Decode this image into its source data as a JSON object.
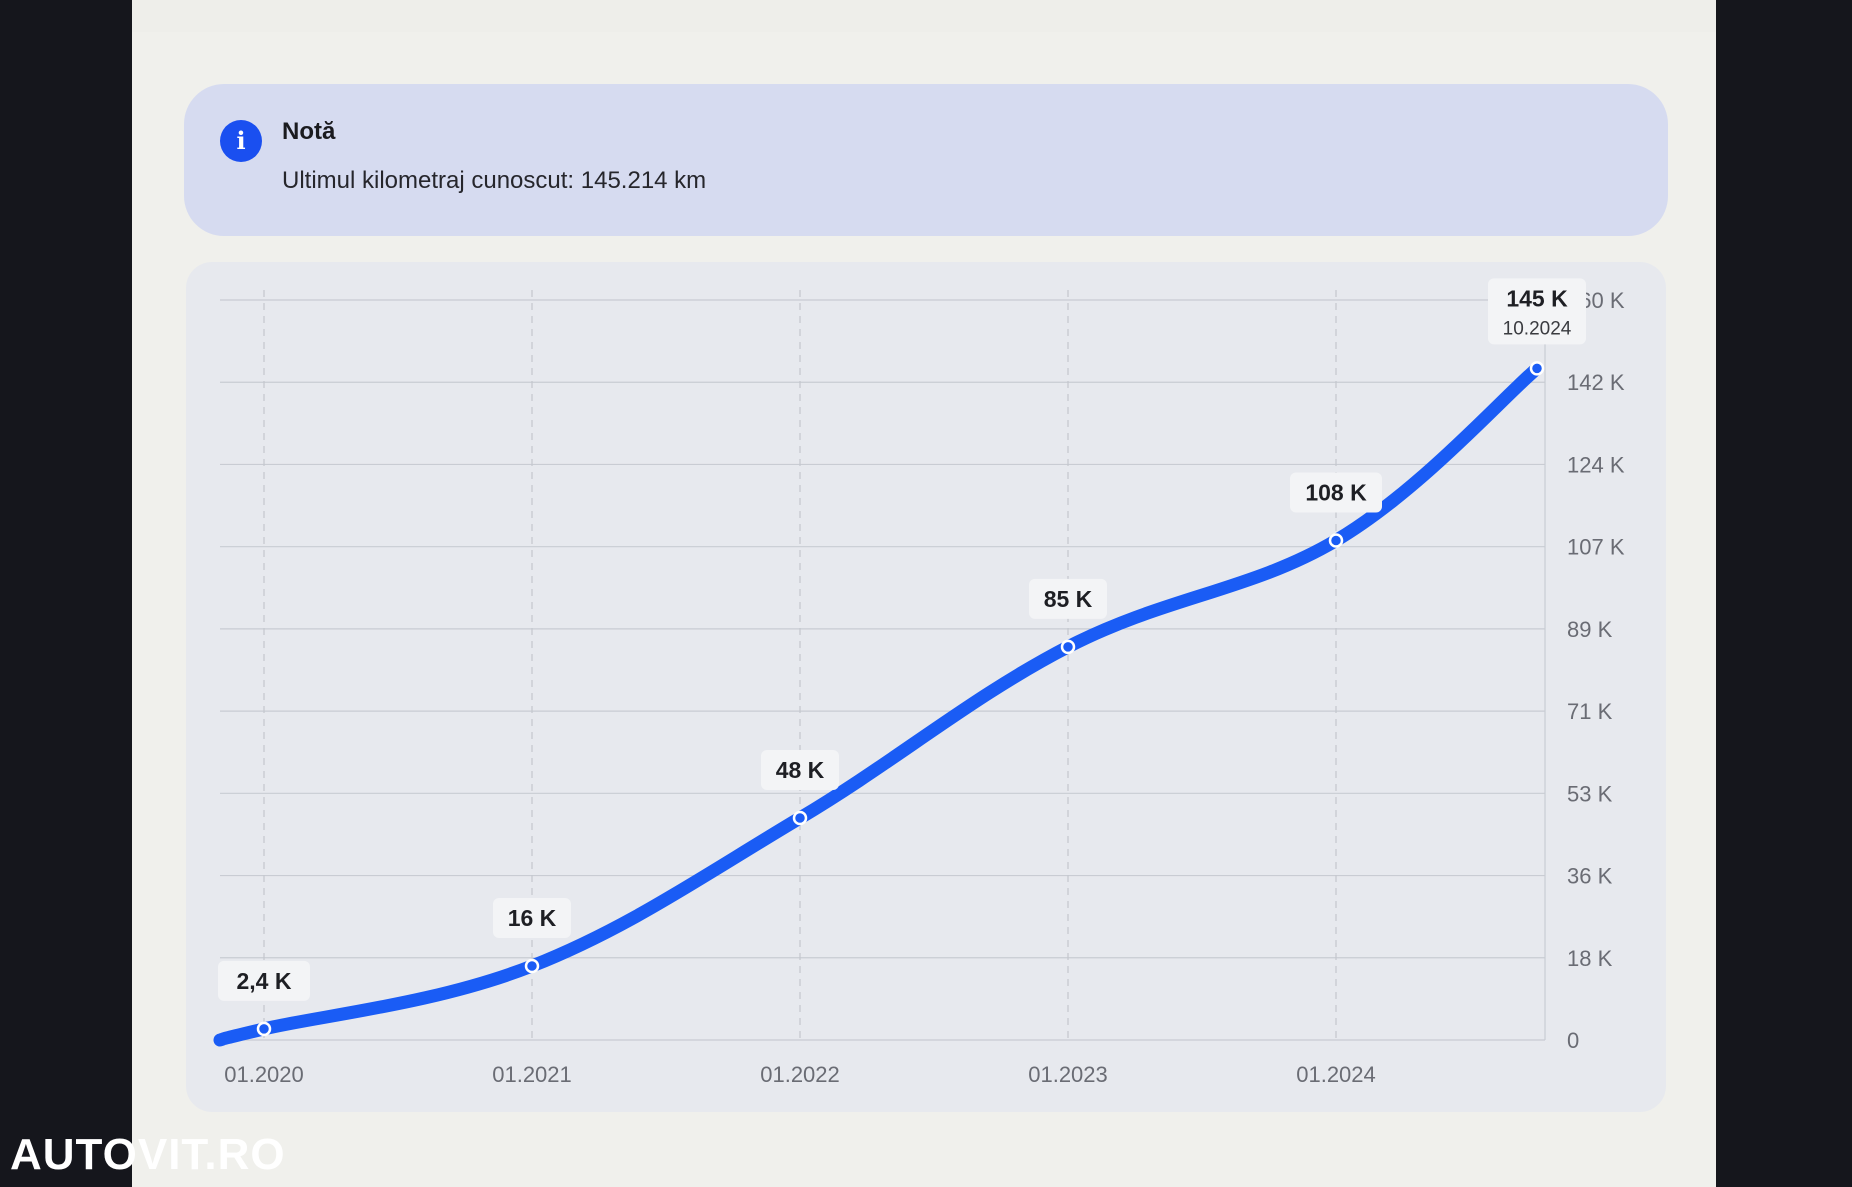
{
  "note": {
    "icon": "info-icon",
    "title": "Notă",
    "text": "Ultimul kilometraj cunoscut: 145.214 km"
  },
  "colors": {
    "line": "#1a5cf5",
    "info_icon": "#1a4ff0",
    "note_bg": "#d6dbf0"
  },
  "chart_data": {
    "type": "line",
    "x_ticks": [
      "01.2020",
      "01.2021",
      "01.2022",
      "01.2023",
      "01.2024"
    ],
    "y_ticks": [
      "0",
      "18 K",
      "36 K",
      "53 K",
      "71 K",
      "89 K",
      "107 K",
      "124 K",
      "142 K",
      "160 K"
    ],
    "y_axis_position": "right",
    "ylim": [
      0,
      160000
    ],
    "grid": true,
    "series": [
      {
        "points": [
          {
            "x": "01.2020",
            "y": 2400,
            "label": "2,4 K"
          },
          {
            "x": "01.2021",
            "y": 16000,
            "label": "16 K"
          },
          {
            "x": "01.2022",
            "y": 48000,
            "label": "48 K"
          },
          {
            "x": "01.2023",
            "y": 85000,
            "label": "85 K"
          },
          {
            "x": "01.2024",
            "y": 108000,
            "label": "108 K"
          },
          {
            "x": "10.2024",
            "y": 145214,
            "label": "145 K",
            "sublabel": "10.2024"
          }
        ]
      }
    ]
  },
  "watermark": "AUTOVIT.RO"
}
